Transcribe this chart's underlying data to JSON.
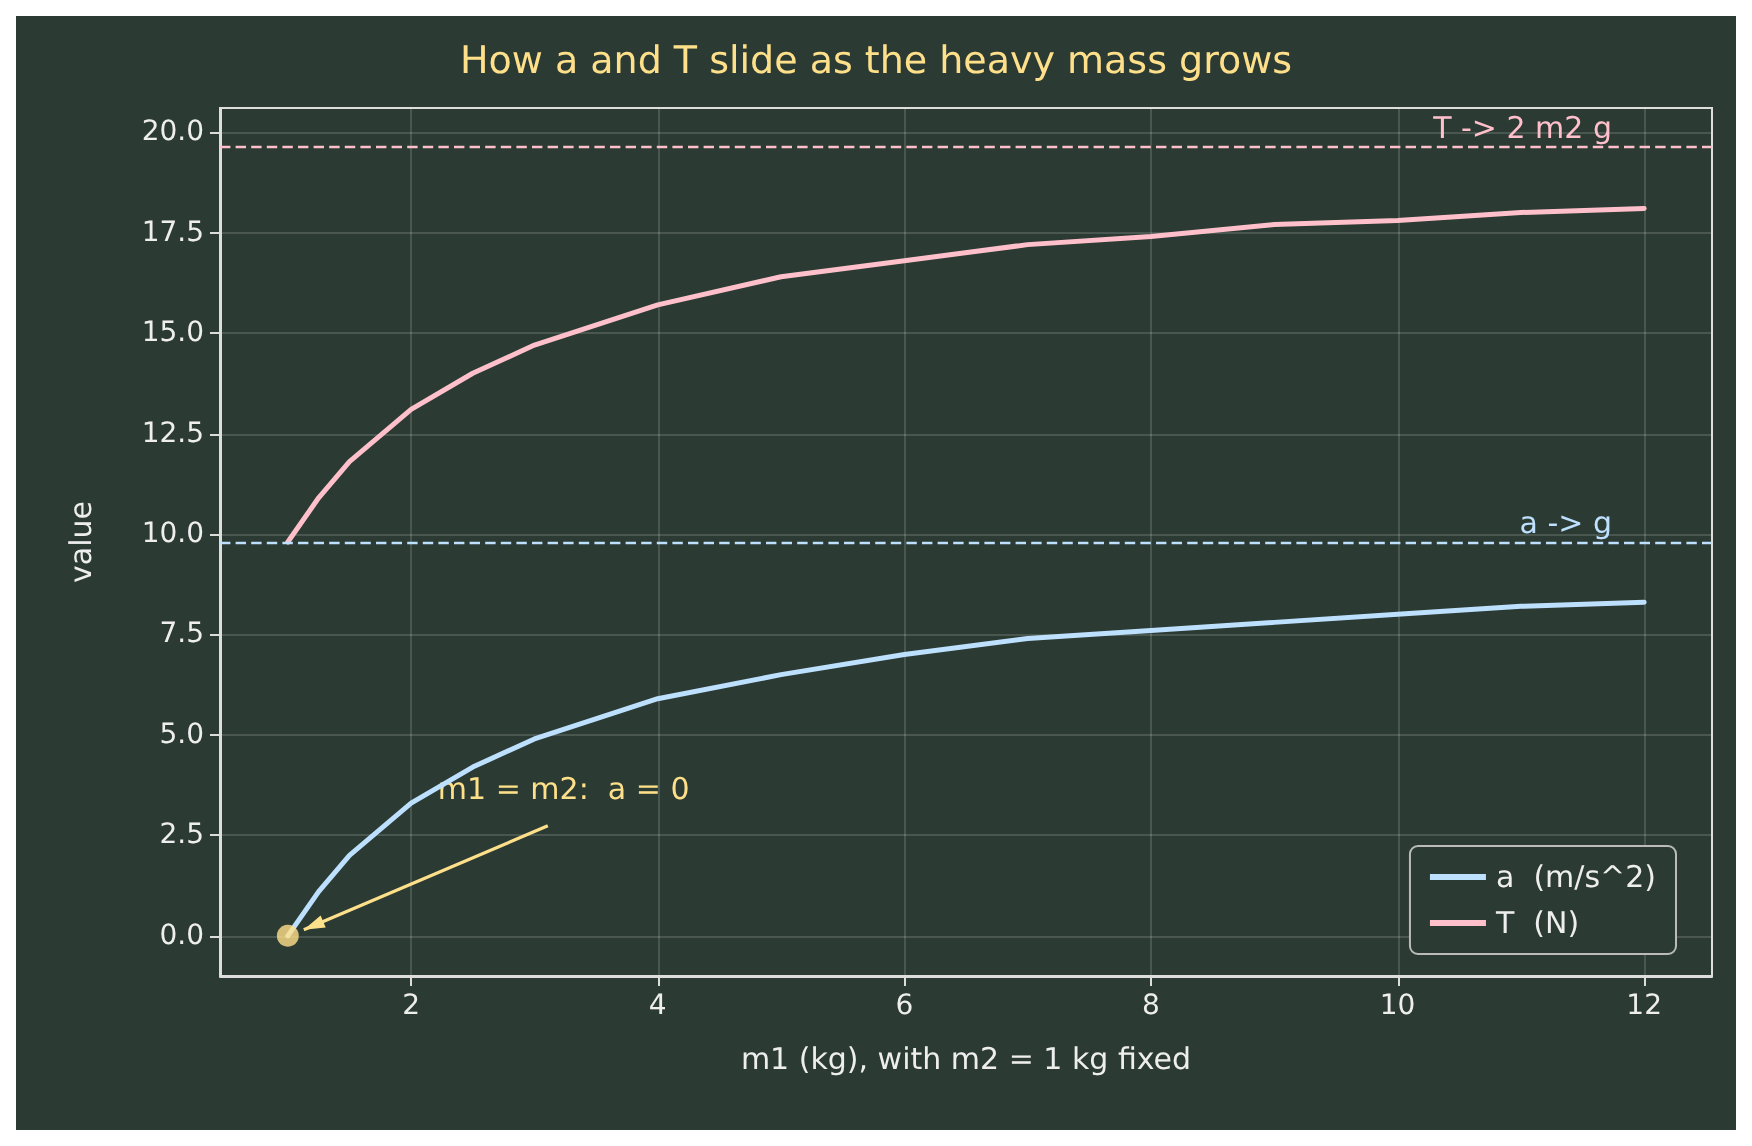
{
  "chart_data": {
    "type": "line",
    "title": "How a and T slide as the heavy mass grows",
    "xlabel": "m1 (kg), with m2 = 1 kg fixed",
    "ylabel": "value",
    "xlim": [
      0.45,
      12.55
    ],
    "xticks": [
      2,
      4,
      6,
      8,
      10,
      12
    ],
    "ylim": [
      -1,
      20.6
    ],
    "yticks": [
      {
        "value": 0,
        "label": "0.0"
      },
      {
        "value": 2.5,
        "label": "2.5"
      },
      {
        "value": 5,
        "label": "5.0"
      },
      {
        "value": 7.5,
        "label": "7.5"
      },
      {
        "value": 10,
        "label": "10.0"
      },
      {
        "value": 12.5,
        "label": "12.5"
      },
      {
        "value": 15,
        "label": "15.0"
      },
      {
        "value": 17.5,
        "label": "17.5"
      },
      {
        "value": 20,
        "label": "20.0"
      }
    ],
    "x": [
      1,
      1.25,
      1.5,
      2,
      2.5,
      3,
      4,
      5,
      6,
      7,
      8,
      9,
      10,
      11,
      12
    ],
    "series": [
      {
        "name": "a  (m/s^2)",
        "color": "#bde0fe",
        "marker": "none",
        "values": [
          0,
          1.1,
          2.0,
          3.3,
          4.2,
          4.9,
          5.9,
          6.5,
          7.0,
          7.4,
          7.6,
          7.8,
          8.0,
          8.2,
          8.3
        ]
      },
      {
        "name": "T  (N)",
        "color": "#ffc0cb",
        "marker": "none",
        "values": [
          9.8,
          10.9,
          11.8,
          13.1,
          14.0,
          14.7,
          15.7,
          16.4,
          16.8,
          17.2,
          17.4,
          17.7,
          17.8,
          18.0,
          18.1
        ]
      },
      {
        "type": "scatter",
        "color": "#ffe08a",
        "marker": "circle",
        "x": [
          1
        ],
        "values": [
          0
        ]
      }
    ],
    "ref_lines": [
      {
        "axis": "y",
        "value": 9.81,
        "label": "a -> g",
        "color": "#bde0fe",
        "line_style": "dashed"
      },
      {
        "axis": "y",
        "value": 19.62,
        "label": "T -> 2 m2 g",
        "color": "#ffc0cb",
        "line_style": "dashed"
      }
    ],
    "annotations": [
      {
        "text": "m1 = m2:  a = 0",
        "x": 1,
        "y": 0
      }
    ],
    "grid": true,
    "legend": "bottom right",
    "line_style": "solid"
  }
}
